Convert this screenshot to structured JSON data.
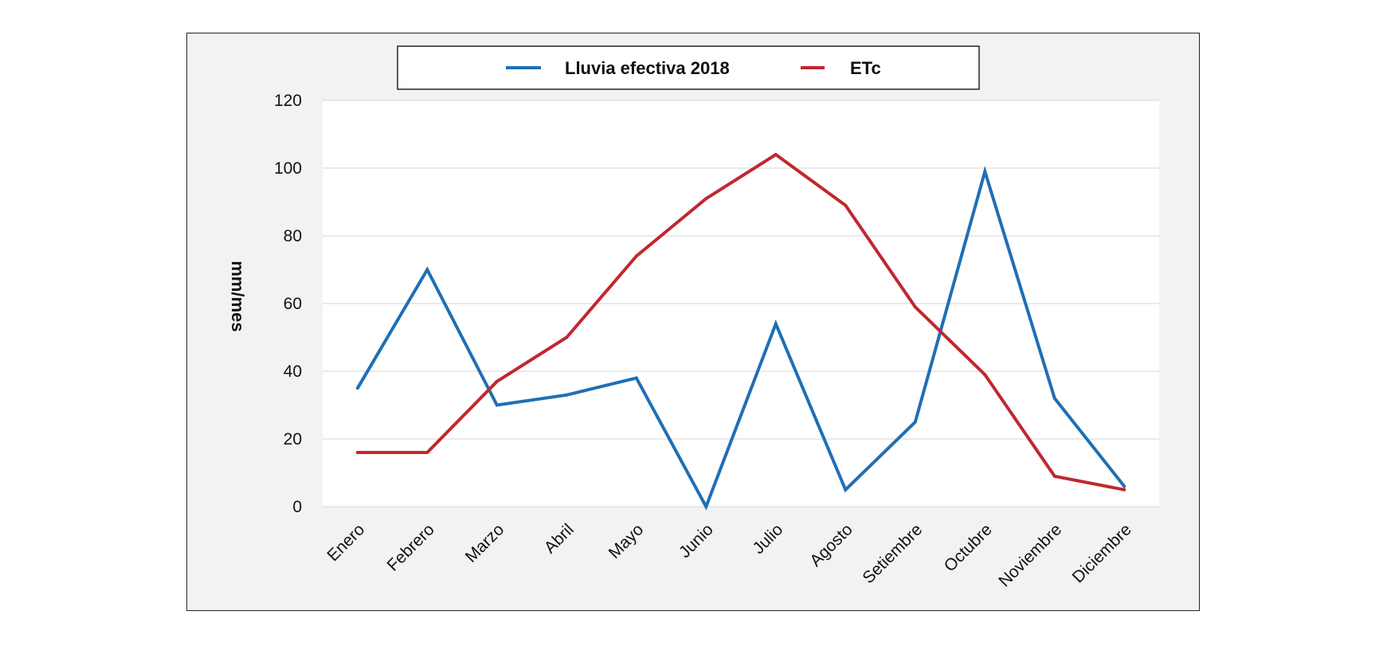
{
  "chart_data": {
    "type": "line",
    "title": "",
    "xlabel": "",
    "ylabel": "mm/mes",
    "categories": [
      "Enero",
      "Febrero",
      "Marzo",
      "Abril",
      "Mayo",
      "Junio",
      "Julio",
      "Agosto",
      "Setiembre",
      "Octubre",
      "Noviembre",
      "Diciembre"
    ],
    "series": [
      {
        "name": "Lluvia efectiva 2018",
        "color": "#1f6fb4",
        "values": [
          35,
          70,
          30,
          33,
          38,
          0,
          54,
          5,
          25,
          99,
          32,
          6
        ]
      },
      {
        "name": "ETc",
        "color": "#c0282d",
        "values": [
          16,
          16,
          37,
          50,
          74,
          91,
          104,
          89,
          59,
          39,
          9,
          5
        ]
      }
    ],
    "ylim": [
      0,
      120
    ],
    "yticks": [
      0,
      20,
      40,
      60,
      80,
      100,
      120
    ],
    "grid": true,
    "legend_position": "top"
  }
}
